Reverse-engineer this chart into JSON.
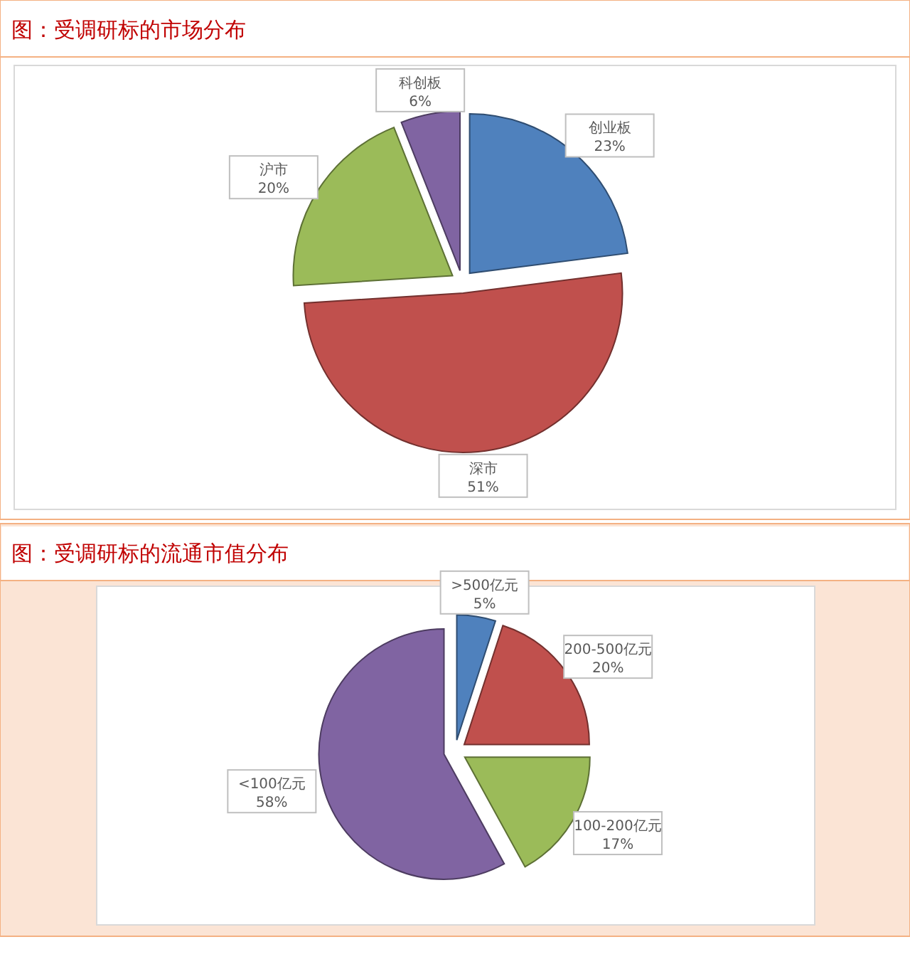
{
  "chart_data": [
    {
      "type": "pie",
      "title": "图：受调研标的市场分布",
      "categories": [
        "创业板",
        "深市",
        "沪市",
        "科创板"
      ],
      "values": [
        23,
        51,
        20,
        6
      ],
      "colors": [
        "#4f81bd",
        "#c0504d",
        "#9bbb59",
        "#8064a2"
      ],
      "value_labels": [
        "23%",
        "51%",
        "20%",
        "6%"
      ],
      "legend": false
    },
    {
      "type": "pie",
      "title": "图：受调研标的流通市值分布",
      "categories": [
        ">500亿元",
        "200-500亿元",
        "100-200亿元",
        "<100亿元"
      ],
      "values": [
        5,
        20,
        17,
        58
      ],
      "colors": [
        "#4f81bd",
        "#c0504d",
        "#9bbb59",
        "#8064a2"
      ],
      "value_labels": [
        "5%",
        "20%",
        "17%",
        "58%"
      ],
      "legend": false
    }
  ]
}
